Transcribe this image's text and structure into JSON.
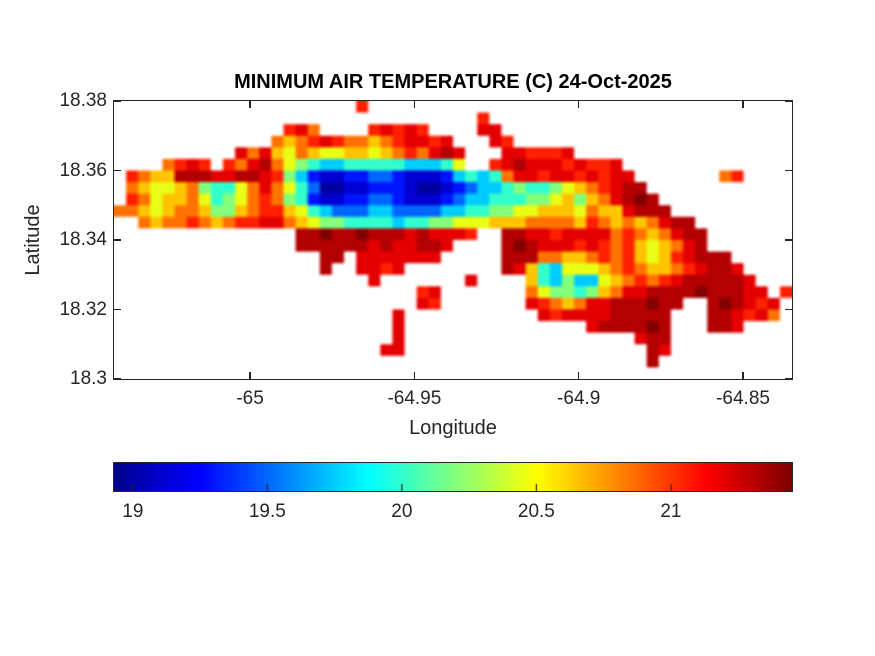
{
  "chart_data": {
    "type": "heatmap",
    "title": "MINIMUM AIR TEMPERATURE (C) 24-Oct-2025",
    "xlabel": "Longitude",
    "ylabel": "Latitude",
    "xlim": [
      -65.0414,
      -64.8351
    ],
    "ylim": [
      18.3,
      18.38
    ],
    "grid_on": false,
    "x_ticks": [
      {
        "value": -65,
        "label": "-65"
      },
      {
        "value": -64.95,
        "label": "-64.95"
      },
      {
        "value": -64.9,
        "label": "-64.9"
      },
      {
        "value": -64.85,
        "label": "-64.85"
      }
    ],
    "y_ticks": [
      {
        "value": 18.38,
        "label": "18.38"
      },
      {
        "value": 18.36,
        "label": "18.36"
      },
      {
        "value": 18.34,
        "label": "18.34"
      },
      {
        "value": 18.32,
        "label": "18.32"
      },
      {
        "value": 18.3,
        "label": "18.3"
      }
    ],
    "colorbar": {
      "orientation": "horizontal",
      "colormap": "jet",
      "clim": [
        18.93,
        21.45
      ],
      "unit": "degC",
      "ticks": [
        {
          "value": 19,
          "label": "19"
        },
        {
          "value": 19.5,
          "label": "19.5"
        },
        {
          "value": 20,
          "label": "20"
        },
        {
          "value": 20.5,
          "label": "20.5"
        },
        {
          "value": 21,
          "label": "21"
        }
      ]
    },
    "grid": {
      "description": "Raster of minimum air temperature (deg C) over the island; '.' = ocean/no data. Each character is one cell; values below map chars to temperature.",
      "ncols": 56,
      "nrows": 24,
      "char_values": {
        "0": 18.98,
        "1": 19.12,
        "2": 19.3,
        "3": 19.5,
        "4": 19.75,
        "5": 20.0,
        "6": 20.2,
        "7": 20.45,
        "8": 20.65,
        "9": 20.85,
        "a": 21.05,
        "b": 21.2,
        "c": 21.32,
        "d": 21.44
      },
      "rows": [
        "....................a...................................",
        "..............................a.........................",
        "..............ab9....ababa....bb........................",
        ".............989aba9989abbab...ba.......................",
        "..........b9b87987788789a9bcb...bbaaab..................",
        "....9aba.a9bc9765445555544457..abcbbbabaab..............",
        ".a988cccbbccba6421122332111245459bbabbababb.......9a....",
        ".98778965579b975300112221001234456556789abcc............",
        ".a9788975679a9652112233211123445556678689bcdc...........",
        "998789986689aa8754333443333445566778887988bccc..........",
        "..9899a989aabb9876655554556677788899998a98989bcc........",
        "...............ccdccdcccbcbbba..ccbbabbbb9a989bcc.......",
        "...............ccccccbcbbccb....cdcbbbaba9a8789bc.......",
        ".................cc.bbbbbbb.....ccc99889a9a878abccc.....",
        ".................c..bbab........cb85477789a9889abccb....",
        ".....................b.......b....854644789a9abcccccb...",
        ".........................ab.......97665689bbccccdcccbb.a",
        ".........................ba.......ba989bbcccdcc..cdcbab.",
        ".......................b...........babbbbccccc...ccbab9.",
        ".......................b...............bccccdc...ccb....",
        ".......................b...................bcc..........",
        "......................bb....................cb..........",
        "............................................c...........",
        "........................................................"
      ]
    }
  },
  "colors": {
    "axis": "#262626",
    "title_text": "#000000",
    "background": "#ffffff"
  }
}
